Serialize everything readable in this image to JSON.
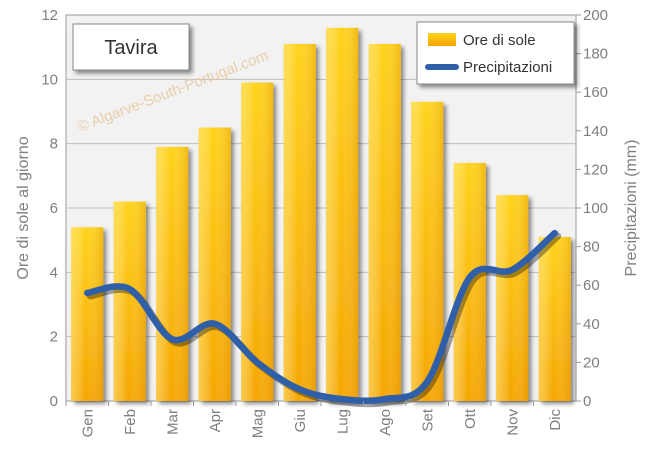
{
  "watermark": "© Algarve-South-Portugal.com",
  "colors": {
    "bar_top": "#ffd21a",
    "bar_bottom": "#f5a500",
    "line": "#2f5fa8",
    "plot_bg": "#f2f2f2",
    "grid": "#bdbdbd",
    "axis_text": "#7f7f7f"
  },
  "chart_data": {
    "type": "bar",
    "title": "Tavira",
    "categories": [
      "Gen",
      "Feb",
      "Mar",
      "Apr",
      "Mag",
      "Giu",
      "Lug",
      "Ago",
      "Set",
      "Ott",
      "Nov",
      "Dic"
    ],
    "series": [
      {
        "name": "Ore di sole",
        "type": "bar",
        "axis": "left",
        "values": [
          5.4,
          6.2,
          7.9,
          8.5,
          9.9,
          11.1,
          11.6,
          11.1,
          9.3,
          7.4,
          6.4,
          5.1
        ]
      },
      {
        "name": "Precipitazioni",
        "type": "line",
        "axis": "right",
        "values": [
          56,
          58,
          32,
          40,
          20,
          6,
          1,
          1,
          10,
          64,
          68,
          87
        ]
      }
    ],
    "ylabel": "Ore di sole al giorno",
    "ylabel_right": "Precipitazioni (mm)",
    "ylim": [
      0,
      12
    ],
    "ylim_right": [
      0,
      200
    ],
    "yticks": [
      "0",
      "2",
      "4",
      "6",
      "8",
      "10",
      "12"
    ],
    "yticks_right": [
      "0",
      "20",
      "40",
      "60",
      "80",
      "100",
      "120",
      "140",
      "160",
      "180",
      "200"
    ],
    "grid": true,
    "legend": "top-right"
  }
}
